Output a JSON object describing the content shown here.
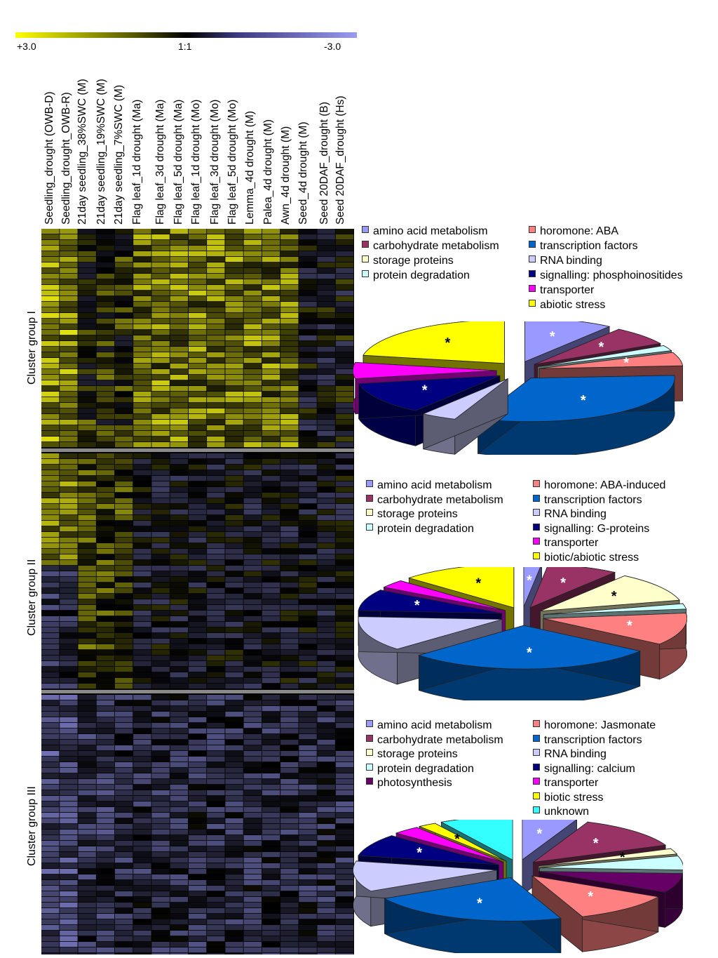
{
  "scale": {
    "left": "+3.0",
    "mid": "1:1",
    "right": "-3.0"
  },
  "columns": [
    "Seedling_drought (OWB-D)",
    "Seedling_drought_OWB-R)",
    "21day seedling_38%SWC (M)",
    "21day seedling_19%SWC (M)",
    "21day seedling_7%SWC (M)",
    "Flag leaf_1d drought (Ma)",
    "Flag leaf_3d drought (Ma)",
    "Flag leaf_5d drought (Ma)",
    "Flag leaf_1d drought (Mo)",
    "Flag leaf_3d drought (Mo)",
    "Flag leaf_5d drought (Mo)",
    "Lemma_4d drought (M)",
    "Palea_4d drought (M)",
    "Awn_4d drought (M)",
    "Seed_4d drought (M)",
    "Seed 20DAF_drought (B)",
    "Seed 20DAF_drought (Hs)"
  ],
  "clusters": [
    "Cluster group I",
    "Cluster group II",
    "Cluster group III"
  ],
  "legends": [
    {
      "left": [
        {
          "label": "amino acid metabolism",
          "color": "#9999ff"
        },
        {
          "label": "carbohydrate metabolism",
          "color": "#993366"
        },
        {
          "label": "storage proteins",
          "color": "#ffffcc"
        },
        {
          "label": "protein degradation",
          "color": "#ccffff"
        }
      ],
      "right": [
        {
          "label": "horomone: ABA",
          "color": "#ff8080"
        },
        {
          "label": "transcription factors",
          "color": "#0066cc"
        },
        {
          "label": "RNA binding",
          "color": "#ccccff"
        },
        {
          "label": "signalling: phosphoinositides",
          "color": "#000080"
        },
        {
          "label": "transporter",
          "color": "#ff00ff"
        },
        {
          "label": "abiotic stress",
          "color": "#ffff00"
        }
      ]
    },
    {
      "left": [
        {
          "label": "amino acid metabolism",
          "color": "#9999ff"
        },
        {
          "label": "carbohydrate metabolism",
          "color": "#993366"
        },
        {
          "label": "storage proteins",
          "color": "#ffffcc"
        },
        {
          "label": "protein degradation",
          "color": "#ccffff"
        }
      ],
      "right": [
        {
          "label": "horomone: ABA-induced",
          "color": "#ff8080"
        },
        {
          "label": "transcription factors",
          "color": "#0066cc"
        },
        {
          "label": "RNA binding",
          "color": "#ccccff"
        },
        {
          "label": "signalling: G-proteins",
          "color": "#000080"
        },
        {
          "label": "transporter",
          "color": "#ff00ff"
        },
        {
          "label": "biotic/abiotic stress",
          "color": "#ffff00"
        }
      ]
    },
    {
      "left": [
        {
          "label": "amino acid metabolism",
          "color": "#9999ff"
        },
        {
          "label": "carbohydrate metabolism",
          "color": "#993366"
        },
        {
          "label": "storage proteins",
          "color": "#ffffcc"
        },
        {
          "label": "protein degradation",
          "color": "#ccffff"
        },
        {
          "label": "photosynthesis",
          "color": "#660066"
        }
      ],
      "right": [
        {
          "label": "horomone: Jasmonate",
          "color": "#ff8080"
        },
        {
          "label": "transcription factors",
          "color": "#0066cc"
        },
        {
          "label": "RNA binding",
          "color": "#ccccff"
        },
        {
          "label": "signalling: calcium",
          "color": "#000080"
        },
        {
          "label": "transporter",
          "color": "#ff00ff"
        },
        {
          "label": "biotic stress",
          "color": "#ffff00"
        },
        {
          "label": "unknown",
          "color": "#33ffff"
        }
      ]
    }
  ],
  "chart_data": [
    {
      "type": "pie",
      "slices": [
        {
          "label": "amino acid metabolism",
          "value": 10,
          "color": "#9999ff",
          "mark": "*",
          "mark_color": "#ffffff"
        },
        {
          "label": "carbohydrate metabolism",
          "value": 7,
          "color": "#993366",
          "mark": "*",
          "mark_color": "#ffffff"
        },
        {
          "label": "protein degradation",
          "value": 2,
          "color": "#ccffff",
          "mark": "",
          "mark_color": "#000000"
        },
        {
          "label": "horomone: ABA",
          "value": 5,
          "color": "#ff8080",
          "mark": "*",
          "mark_color": "#ffffff"
        },
        {
          "label": "transcription factors",
          "value": 32,
          "color": "#0066cc",
          "mark": "*",
          "mark_color": "#ffffff"
        },
        {
          "label": "RNA binding",
          "value": 4,
          "color": "#ccccff",
          "mark": "",
          "mark_color": "#000000"
        },
        {
          "label": "signalling: phosphoinositides",
          "value": 12,
          "color": "#000080",
          "mark": "*",
          "mark_color": "#ffffff"
        },
        {
          "label": "transporter",
          "value": 6,
          "color": "#ff00ff",
          "mark": "",
          "mark_color": "#000000"
        },
        {
          "label": "abiotic stress",
          "value": 22,
          "color": "#ffff00",
          "mark": "*",
          "mark_color": "#000000"
        }
      ]
    },
    {
      "type": "pie",
      "slices": [
        {
          "label": "amino acid metabolism",
          "value": 2,
          "color": "#9999ff",
          "mark": "*",
          "mark_color": "#ffffff"
        },
        {
          "label": "carbohydrate metabolism",
          "value": 8,
          "color": "#993366",
          "mark": "*",
          "mark_color": "#ffffff"
        },
        {
          "label": "storage proteins",
          "value": 11,
          "color": "#ffffcc",
          "mark": "*",
          "mark_color": "#000000"
        },
        {
          "label": "protein degradation",
          "value": 2,
          "color": "#ccffff",
          "mark": "",
          "mark_color": "#000000"
        },
        {
          "label": "horomone: ABA-induced",
          "value": 12,
          "color": "#ff8080",
          "mark": "*",
          "mark_color": "#ffffff"
        },
        {
          "label": "transcription factors",
          "value": 28,
          "color": "#0066cc",
          "mark": "*",
          "mark_color": "#ffffff"
        },
        {
          "label": "RNA binding",
          "value": 13,
          "color": "#ccccff",
          "mark": "",
          "mark_color": "#000000"
        },
        {
          "label": "signalling: G-proteins",
          "value": 8,
          "color": "#000080",
          "mark": "*",
          "mark_color": "#ffffff"
        },
        {
          "label": "transporter",
          "value": 3,
          "color": "#ff00ff",
          "mark": "",
          "mark_color": "#000000"
        },
        {
          "label": "biotic/abiotic stress",
          "value": 13,
          "color": "#ffff00",
          "mark": "*",
          "mark_color": "#000000"
        }
      ]
    },
    {
      "type": "pie",
      "slices": [
        {
          "label": "amino acid metabolism",
          "value": 6,
          "color": "#9999ff",
          "mark": "*",
          "mark_color": "#ffffff"
        },
        {
          "label": "carbohydrate metabolism",
          "value": 12,
          "color": "#993366",
          "mark": "*",
          "mark_color": "#ffffff"
        },
        {
          "label": "storage proteins",
          "value": 2,
          "color": "#ffffcc",
          "mark": "*",
          "mark_color": "#000000"
        },
        {
          "label": "protein degradation",
          "value": 5,
          "color": "#ccffff",
          "mark": "",
          "mark_color": "#000000"
        },
        {
          "label": "photosynthesis",
          "value": 7,
          "color": "#660066",
          "mark": "",
          "mark_color": "#000000"
        },
        {
          "label": "horomone: Jasmonate",
          "value": 11,
          "color": "#ff8080",
          "mark": "*",
          "mark_color": "#ffffff"
        },
        {
          "label": "transcription factors",
          "value": 22,
          "color": "#0066cc",
          "mark": "*",
          "mark_color": "#ffffff"
        },
        {
          "label": "RNA binding",
          "value": 11,
          "color": "#ccccff",
          "mark": "",
          "mark_color": "#000000"
        },
        {
          "label": "signalling: calcium",
          "value": 8,
          "color": "#000080",
          "mark": "*",
          "mark_color": "#ffffff"
        },
        {
          "label": "transporter",
          "value": 3,
          "color": "#ff00ff",
          "mark": "",
          "mark_color": "#000000"
        },
        {
          "label": "biotic stress",
          "value": 2,
          "color": "#ffff00",
          "mark": "*",
          "mark_color": "#000000"
        },
        {
          "label": "unknown",
          "value": 8,
          "color": "#33ffff",
          "mark": "",
          "mark_color": "#000000"
        }
      ]
    }
  ]
}
